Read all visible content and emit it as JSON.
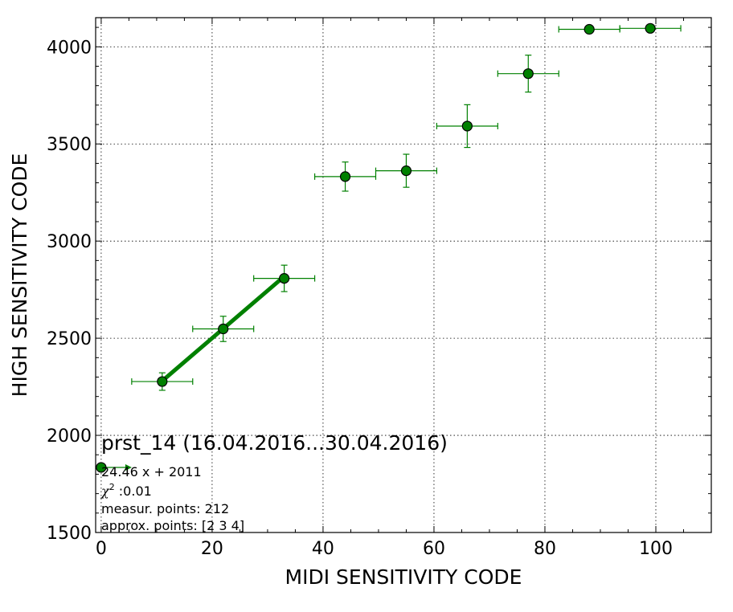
{
  "chart_data": {
    "type": "scatter",
    "xlabel": "MIDI SENSITIVITY CODE",
    "ylabel": "HIGH SENSITIVITY CODE",
    "xlim": [
      -1,
      110
    ],
    "ylim": [
      1500,
      4150
    ],
    "xticks": [
      0,
      20,
      40,
      60,
      80,
      100
    ],
    "yticks": [
      1500,
      2000,
      2500,
      3000,
      3500,
      4000
    ],
    "grid": true,
    "colors": {
      "series": "#008000",
      "marker_fill": "#008000",
      "marker_edge": "#000000"
    },
    "series": [
      {
        "points": [
          {
            "x": 11,
            "y": 2277,
            "xerr": 5.5,
            "yerr": 45
          },
          {
            "x": 22,
            "y": 2548,
            "xerr": 5.5,
            "yerr": 65
          },
          {
            "x": 33,
            "y": 2808,
            "xerr": 5.5,
            "yerr": 68
          },
          {
            "x": 44,
            "y": 3332,
            "xerr": 5.5,
            "yerr": 75
          },
          {
            "x": 55,
            "y": 3362,
            "xerr": 5.5,
            "yerr": 85
          },
          {
            "x": 66,
            "y": 3592,
            "xerr": 5.5,
            "yerr": 110
          },
          {
            "x": 77,
            "y": 3862,
            "xerr": 5.5,
            "yerr": 95
          },
          {
            "x": 88,
            "y": 4090,
            "xerr": 5.5,
            "yerr": 0
          },
          {
            "x": 99,
            "y": 4095,
            "xerr": 5.5,
            "yerr": 0
          }
        ]
      }
    ],
    "fit": {
      "slope": 24.46,
      "intercept": 2011,
      "x_range": [
        11,
        33
      ]
    },
    "legend_marker": {
      "x": 0,
      "y": 1835
    },
    "annotation": {
      "title": "prst_14 (16.04.2016...30.04.2016)",
      "equation": "24.46 x + 2011",
      "chi_symbol": "χ",
      "chi_exp": "2",
      "chi_value": " :0.01",
      "measur": "measur. points: 212",
      "approx": "approx. points: [2 3 4]"
    }
  }
}
